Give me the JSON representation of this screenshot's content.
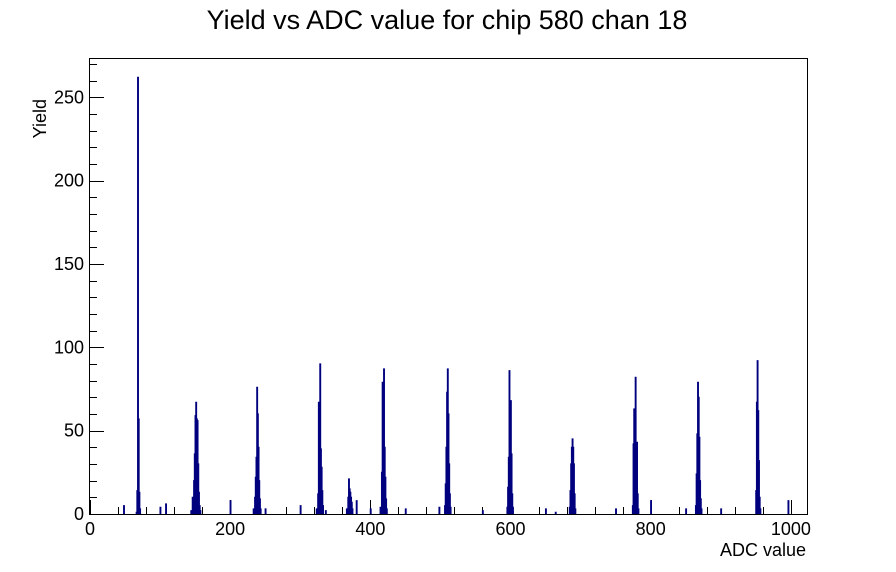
{
  "chart_data": {
    "type": "histogram",
    "title": "Yield vs ADC value for chip 580 chan 18",
    "xlabel": "ADC value",
    "ylabel": "Yield",
    "xlim": [
      0,
      1023
    ],
    "ylim": [
      0,
      273
    ],
    "x_ticks": [
      0,
      200,
      400,
      600,
      800,
      1000
    ],
    "y_ticks": [
      0,
      50,
      100,
      150,
      200,
      250
    ],
    "grid": false,
    "line_color": "#00007f",
    "bins": [
      {
        "x": 48,
        "y": 5
      },
      {
        "x": 66,
        "y": 1
      },
      {
        "x": 67,
        "y": 14
      },
      {
        "x": 68,
        "y": 262
      },
      {
        "x": 69,
        "y": 57
      },
      {
        "x": 70,
        "y": 13
      },
      {
        "x": 71,
        "y": 3
      },
      {
        "x": 100,
        "y": 4
      },
      {
        "x": 108,
        "y": 6
      },
      {
        "x": 144,
        "y": 2
      },
      {
        "x": 146,
        "y": 10
      },
      {
        "x": 148,
        "y": 20
      },
      {
        "x": 149,
        "y": 36
      },
      {
        "x": 150,
        "y": 59
      },
      {
        "x": 151,
        "y": 67
      },
      {
        "x": 152,
        "y": 57
      },
      {
        "x": 153,
        "y": 56
      },
      {
        "x": 154,
        "y": 30
      },
      {
        "x": 155,
        "y": 13
      },
      {
        "x": 156,
        "y": 5
      },
      {
        "x": 157,
        "y": 2
      },
      {
        "x": 200,
        "y": 8
      },
      {
        "x": 233,
        "y": 3
      },
      {
        "x": 235,
        "y": 10
      },
      {
        "x": 236,
        "y": 22
      },
      {
        "x": 237,
        "y": 34
      },
      {
        "x": 238,
        "y": 76
      },
      {
        "x": 239,
        "y": 60
      },
      {
        "x": 240,
        "y": 40
      },
      {
        "x": 241,
        "y": 20
      },
      {
        "x": 242,
        "y": 9
      },
      {
        "x": 243,
        "y": 3
      },
      {
        "x": 250,
        "y": 3
      },
      {
        "x": 300,
        "y": 5
      },
      {
        "x": 323,
        "y": 3
      },
      {
        "x": 325,
        "y": 12
      },
      {
        "x": 326,
        "y": 67
      },
      {
        "x": 327,
        "y": 41
      },
      {
        "x": 328,
        "y": 90
      },
      {
        "x": 329,
        "y": 39
      },
      {
        "x": 330,
        "y": 28
      },
      {
        "x": 331,
        "y": 14
      },
      {
        "x": 332,
        "y": 5
      },
      {
        "x": 336,
        "y": 2
      },
      {
        "x": 366,
        "y": 3
      },
      {
        "x": 368,
        "y": 10
      },
      {
        "x": 369,
        "y": 21
      },
      {
        "x": 370,
        "y": 15
      },
      {
        "x": 371,
        "y": 13
      },
      {
        "x": 372,
        "y": 10
      },
      {
        "x": 373,
        "y": 7
      },
      {
        "x": 374,
        "y": 3
      },
      {
        "x": 380,
        "y": 8
      },
      {
        "x": 400,
        "y": 3
      },
      {
        "x": 414,
        "y": 4
      },
      {
        "x": 416,
        "y": 25
      },
      {
        "x": 417,
        "y": 79
      },
      {
        "x": 418,
        "y": 50
      },
      {
        "x": 419,
        "y": 87
      },
      {
        "x": 420,
        "y": 40
      },
      {
        "x": 421,
        "y": 22
      },
      {
        "x": 422,
        "y": 9
      },
      {
        "x": 423,
        "y": 3
      },
      {
        "x": 450,
        "y": 3
      },
      {
        "x": 498,
        "y": 4
      },
      {
        "x": 506,
        "y": 5
      },
      {
        "x": 507,
        "y": 18
      },
      {
        "x": 508,
        "y": 40
      },
      {
        "x": 509,
        "y": 73
      },
      {
        "x": 510,
        "y": 87
      },
      {
        "x": 511,
        "y": 60
      },
      {
        "x": 512,
        "y": 30
      },
      {
        "x": 513,
        "y": 12
      },
      {
        "x": 514,
        "y": 4
      },
      {
        "x": 560,
        "y": 2
      },
      {
        "x": 595,
        "y": 4
      },
      {
        "x": 596,
        "y": 16
      },
      {
        "x": 597,
        "y": 34
      },
      {
        "x": 598,
        "y": 86
      },
      {
        "x": 599,
        "y": 54
      },
      {
        "x": 600,
        "y": 68
      },
      {
        "x": 601,
        "y": 36
      },
      {
        "x": 602,
        "y": 12
      },
      {
        "x": 603,
        "y": 4
      },
      {
        "x": 650,
        "y": 3
      },
      {
        "x": 664,
        "y": 1
      },
      {
        "x": 684,
        "y": 4
      },
      {
        "x": 685,
        "y": 14
      },
      {
        "x": 686,
        "y": 30
      },
      {
        "x": 687,
        "y": 40
      },
      {
        "x": 688,
        "y": 45
      },
      {
        "x": 689,
        "y": 40
      },
      {
        "x": 690,
        "y": 30
      },
      {
        "x": 691,
        "y": 12
      },
      {
        "x": 692,
        "y": 3
      },
      {
        "x": 750,
        "y": 3
      },
      {
        "x": 774,
        "y": 5
      },
      {
        "x": 775,
        "y": 42
      },
      {
        "x": 776,
        "y": 63
      },
      {
        "x": 777,
        "y": 40
      },
      {
        "x": 778,
        "y": 82
      },
      {
        "x": 779,
        "y": 22
      },
      {
        "x": 780,
        "y": 43
      },
      {
        "x": 781,
        "y": 12
      },
      {
        "x": 782,
        "y": 3
      },
      {
        "x": 800,
        "y": 8
      },
      {
        "x": 850,
        "y": 3
      },
      {
        "x": 864,
        "y": 5
      },
      {
        "x": 865,
        "y": 24
      },
      {
        "x": 866,
        "y": 48
      },
      {
        "x": 867,
        "y": 79
      },
      {
        "x": 868,
        "y": 70
      },
      {
        "x": 869,
        "y": 46
      },
      {
        "x": 870,
        "y": 20
      },
      {
        "x": 871,
        "y": 9
      },
      {
        "x": 872,
        "y": 3
      },
      {
        "x": 900,
        "y": 3
      },
      {
        "x": 950,
        "y": 14
      },
      {
        "x": 951,
        "y": 67
      },
      {
        "x": 952,
        "y": 92
      },
      {
        "x": 953,
        "y": 62
      },
      {
        "x": 954,
        "y": 32
      },
      {
        "x": 955,
        "y": 10
      },
      {
        "x": 956,
        "y": 3
      },
      {
        "x": 996,
        "y": 8
      }
    ]
  }
}
